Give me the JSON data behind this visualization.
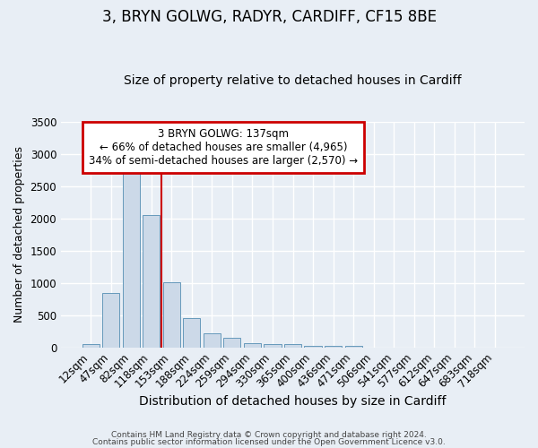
{
  "title1": "3, BRYN GOLWG, RADYR, CARDIFF, CF15 8BE",
  "title2": "Size of property relative to detached houses in Cardiff",
  "xlabel": "Distribution of detached houses by size in Cardiff",
  "ylabel": "Number of detached properties",
  "bin_labels": [
    "12sqm",
    "47sqm",
    "82sqm",
    "118sqm",
    "153sqm",
    "188sqm",
    "224sqm",
    "259sqm",
    "294sqm",
    "330sqm",
    "365sqm",
    "400sqm",
    "436sqm",
    "471sqm",
    "506sqm",
    "541sqm",
    "577sqm",
    "612sqm",
    "647sqm",
    "683sqm",
    "718sqm"
  ],
  "bar_heights": [
    55,
    850,
    2700,
    2050,
    1010,
    450,
    215,
    145,
    60,
    50,
    45,
    30,
    25,
    25,
    0,
    0,
    0,
    0,
    0,
    0,
    0
  ],
  "bar_color": "#ccd9e8",
  "bar_edge_color": "#6699bb",
  "red_line_x": 3.5,
  "ylim": [
    0,
    3500
  ],
  "annotation_text": "3 BRYN GOLWG: 137sqm\n← 66% of detached houses are smaller (4,965)\n34% of semi-detached houses are larger (2,570) →",
  "annotation_box_color": "#cc0000",
  "background_color": "#e8eef5",
  "grid_color": "#ffffff",
  "footer1": "Contains HM Land Registry data © Crown copyright and database right 2024.",
  "footer2": "Contains public sector information licensed under the Open Government Licence v3.0.",
  "title1_fontsize": 12,
  "title2_fontsize": 10,
  "tick_fontsize": 8.5,
  "ylabel_fontsize": 9,
  "xlabel_fontsize": 10
}
